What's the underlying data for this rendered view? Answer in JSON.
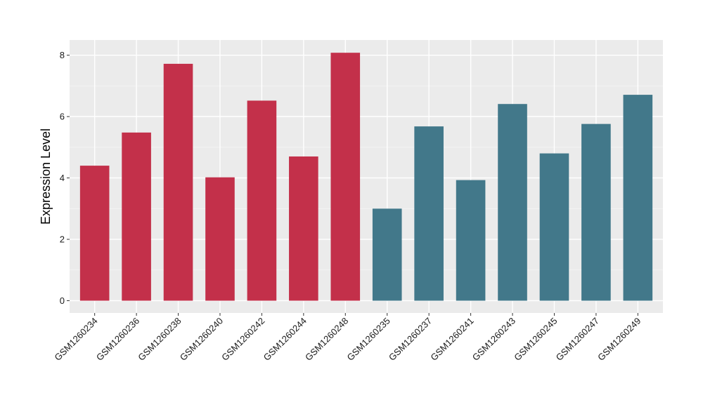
{
  "chart_data": {
    "type": "bar",
    "title": "",
    "xlabel": "",
    "ylabel": "Expression Level",
    "ylim": [
      0,
      8.45
    ],
    "yticks": [
      0,
      2,
      4,
      6,
      8
    ],
    "grid": true,
    "legend": "none",
    "background": "#ebebeb",
    "categories": [
      "GSM1260234",
      "GSM1260236",
      "GSM1260238",
      "GSM1260240",
      "GSM1260242",
      "GSM1260244",
      "GSM1260248",
      "GSM1260235",
      "GSM1260237",
      "GSM1260241",
      "GSM1260243",
      "GSM1260245",
      "GSM1260247",
      "GSM1260249"
    ],
    "values": [
      4.4,
      5.48,
      7.72,
      4.02,
      6.52,
      4.7,
      8.08,
      3.0,
      5.68,
      3.93,
      6.41,
      4.8,
      5.76,
      6.71
    ],
    "colors": [
      "#c3304a",
      "#c3304a",
      "#c3304a",
      "#c3304a",
      "#c3304a",
      "#c3304a",
      "#c3304a",
      "#42788a",
      "#42788a",
      "#42788a",
      "#42788a",
      "#42788a",
      "#42788a",
      "#42788a"
    ]
  }
}
